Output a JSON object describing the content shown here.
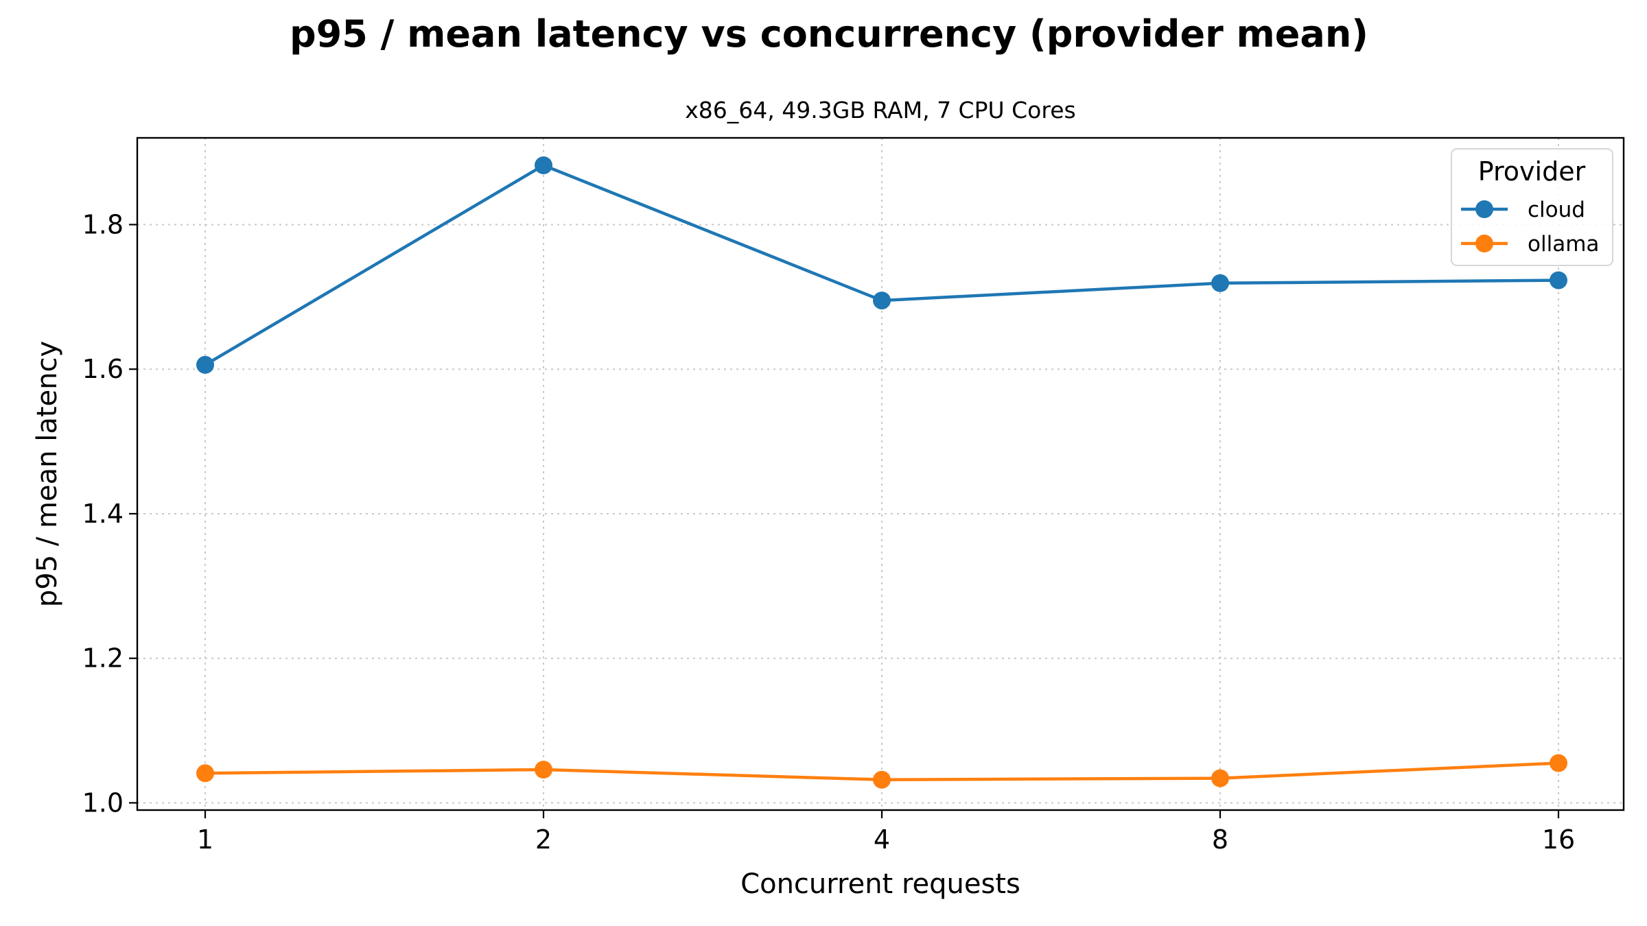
{
  "chart_data": {
    "type": "line",
    "title": "p95 / mean latency vs concurrency (provider mean)",
    "subtitle": "x86_64, 49.3GB RAM, 7 CPU Cores",
    "xlabel": "Concurrent requests",
    "ylabel": "p95 / mean latency",
    "x": [
      "1",
      "2",
      "4",
      "8",
      "16"
    ],
    "x_scale": "categorical",
    "ylim": [
      0.99,
      1.92
    ],
    "yticks": [
      1.0,
      1.2,
      1.4,
      1.6,
      1.8
    ],
    "ytick_labels": [
      "1.0",
      "1.2",
      "1.4",
      "1.6",
      "1.8"
    ],
    "grid": true,
    "legend": {
      "title": "Provider",
      "placement": "top-right"
    },
    "series": [
      {
        "name": "cloud",
        "color": "#1f77b4",
        "marker": "circle",
        "values": [
          1.606,
          1.882,
          1.695,
          1.719,
          1.723
        ]
      },
      {
        "name": "ollama",
        "color": "#ff7f0e",
        "marker": "circle",
        "values": [
          1.041,
          1.046,
          1.032,
          1.034,
          1.055
        ]
      }
    ]
  }
}
